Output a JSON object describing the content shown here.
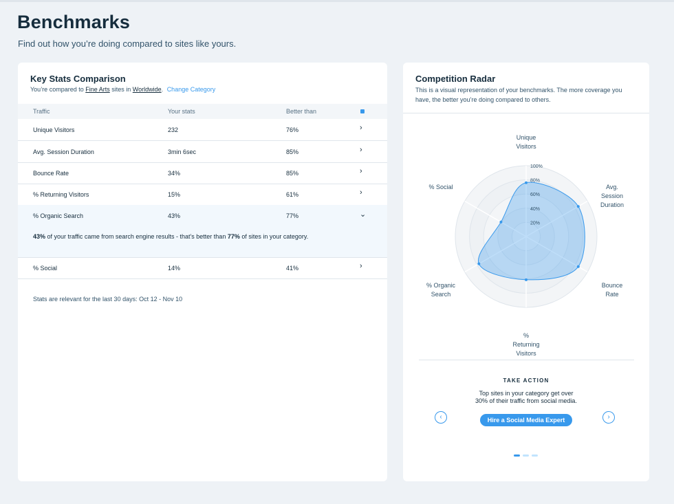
{
  "header": {
    "title": "Benchmarks",
    "subtitle": "Find out how you’re doing compared to sites like yours."
  },
  "key_stats": {
    "title": "Key Stats Comparison",
    "compared_prefix": "You’re compared to",
    "category": "Fine Arts",
    "sites_in": "sites in",
    "region": "Worldwide",
    "period": ".",
    "change_link": "Change Category",
    "columns": [
      "Traffic",
      "Your stats",
      "Better than"
    ],
    "rows": [
      {
        "name": "Unique Visitors",
        "your": "232",
        "better": "76%",
        "chevron": "›"
      },
      {
        "name": "Avg. Session Duration",
        "your": "3min 6sec",
        "better": "85%",
        "chevron": "›"
      },
      {
        "name": "Bounce Rate",
        "your": "34%",
        "better": "85%",
        "chevron": "›"
      },
      {
        "name": "% Returning Visitors",
        "your": "15%",
        "better": "61%",
        "chevron": "›"
      },
      {
        "name": "% Organic Search",
        "your": "43%",
        "better": "77%",
        "chevron": "⌄"
      },
      {
        "name": "% Social",
        "your": "14%",
        "better": "41%",
        "chevron": "›"
      }
    ],
    "expanded_detail": {
      "value": "43%",
      "middle": "of your traffic came from search engine results - that’s better than",
      "better": "77%",
      "end": "of sites in your category."
    },
    "footnote": "Stats are relevant for the last 30 days: Oct 12 - Nov 10"
  },
  "radar": {
    "title": "Competition Radar",
    "description_line1": "This is a visual representation of your benchmarks. The more coverage you",
    "description_line2": "have, the better you’re doing compared to others.",
    "axes": [
      {
        "label": [
          "Unique",
          "Visitors"
        ],
        "value": 76
      },
      {
        "label": [
          "Avg.",
          "Session",
          "Duration"
        ],
        "value": 85
      },
      {
        "label": [
          "Bounce",
          "Rate"
        ],
        "value": 85
      },
      {
        "label": [
          "%",
          "Returning",
          "Visitors"
        ],
        "value": 61
      },
      {
        "label": [
          "% Organic",
          "Search"
        ],
        "value": 77
      },
      {
        "label": [
          "% Social"
        ],
        "value": 41
      }
    ],
    "scale_labels": [
      "20%",
      "40%",
      "60%",
      "80%",
      "100%"
    ],
    "fill_color": "#3899ec",
    "take_action": {
      "heading": "TAKE ACTION",
      "text_line1": "Top sites in your category get over",
      "text_line2": "30% of their traffic from social media.",
      "button": "Hire a Social Media Expert",
      "prev_icon": "‹",
      "next_icon": "›",
      "pages": 3,
      "current_page": 1
    }
  }
}
